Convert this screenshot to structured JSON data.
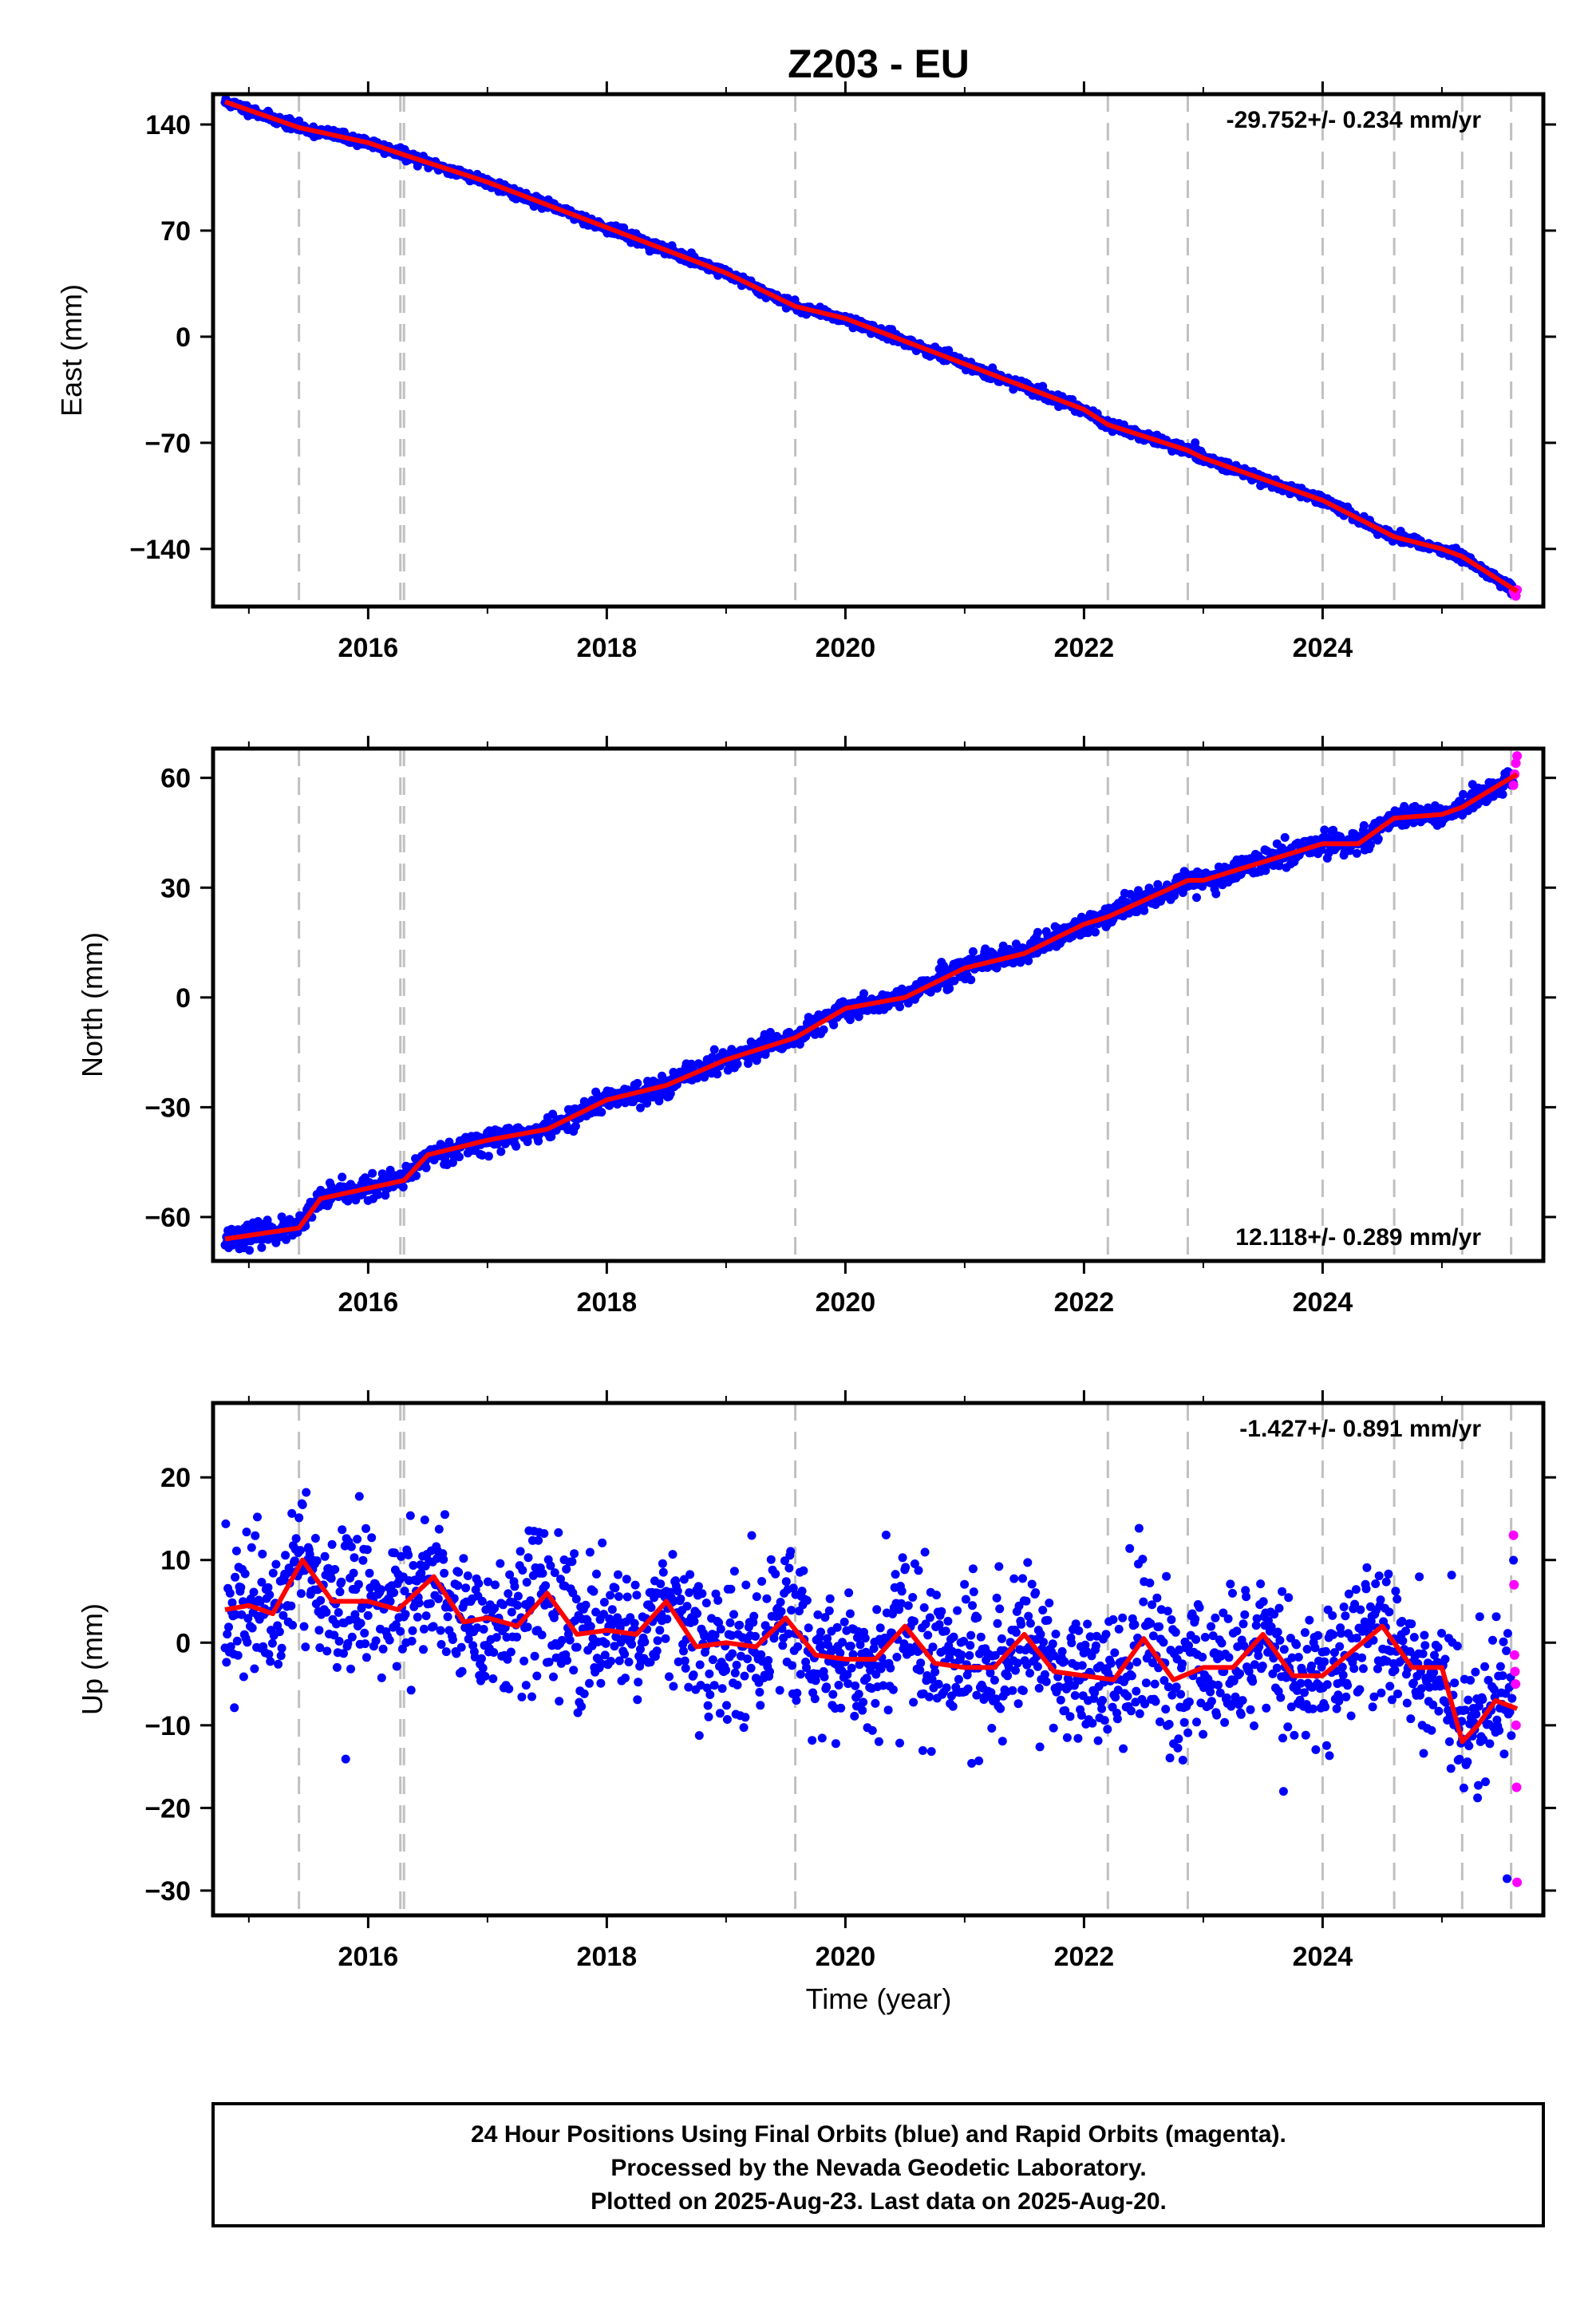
{
  "colors": {
    "final_points": "#0000ff",
    "rapid_points": "#ff00ff",
    "model_line": "#ff0000",
    "event_lines": "#c0c0c0",
    "frame": "#000000"
  },
  "chart_data": {
    "type": "scatter",
    "title": "Z203 - EU",
    "xlabel": "Time (year)",
    "x_range": [
      2014.7,
      2025.85
    ],
    "x_ticks": [
      "2016",
      "2018",
      "2020",
      "2022",
      "2024"
    ],
    "event_lines_years": [
      2015.42,
      2016.27,
      2016.3,
      2019.58,
      2022.2,
      2022.87,
      2024.0,
      2024.6,
      2025.17,
      2025.58
    ],
    "start_year": 2014.8,
    "end_year": 2025.63,
    "rapid_start_year": 2025.6,
    "panels": [
      {
        "name": "East",
        "ylabel": "East (mm)",
        "ylim": [
          -178,
          160
        ],
        "yticks": [
          "140",
          "70",
          "0",
          "−70",
          "−140"
        ],
        "ytick_values": [
          140,
          70,
          0,
          -70,
          -140
        ],
        "rate_text": "-29.752+/- 0.234 mm/yr",
        "rate_position": "top-right",
        "scatter_sd": 1.6,
        "model": {
          "years": [
            2014.8,
            2015.42,
            2016.0,
            2016.3,
            2017.0,
            2018.0,
            2019.0,
            2019.58,
            2020.0,
            2021.0,
            2022.0,
            2022.2,
            2022.87,
            2023.0,
            2024.0,
            2024.6,
            2025.0,
            2025.17,
            2025.63
          ],
          "values": [
            155,
            138,
            128,
            120,
            102,
            72,
            42,
            20,
            12,
            -18,
            -48,
            -58,
            -75,
            -80,
            -108,
            -132,
            -140,
            -145,
            -168
          ]
        },
        "rapid_values": [
          -168,
          -170,
          -171,
          -167
        ]
      },
      {
        "name": "North",
        "ylabel": "North (mm)",
        "ylim": [
          -72,
          68
        ],
        "yticks": [
          "60",
          "30",
          "0",
          "−30",
          "−60"
        ],
        "ytick_values": [
          60,
          30,
          0,
          -30,
          -60
        ],
        "rate_text": "12.118+/- 0.289 mm/yr",
        "rate_position": "bottom-right",
        "scatter_sd": 1.5,
        "model": {
          "years": [
            2014.8,
            2015.42,
            2015.6,
            2016.3,
            2016.5,
            2017.0,
            2017.5,
            2018.0,
            2018.5,
            2019.0,
            2019.58,
            2020.0,
            2020.5,
            2021.0,
            2021.5,
            2022.0,
            2022.2,
            2022.87,
            2023.0,
            2024.0,
            2024.3,
            2024.6,
            2025.0,
            2025.17,
            2025.63
          ],
          "values": [
            -66,
            -63,
            -55,
            -50,
            -43,
            -39,
            -36,
            -28,
            -24,
            -17,
            -11,
            -3,
            0,
            8,
            12,
            20,
            22,
            32,
            32,
            42,
            42,
            49,
            50,
            52,
            61
          ]
        },
        "rapid_values": [
          58,
          61,
          64,
          66
        ]
      },
      {
        "name": "Up",
        "ylabel": "Up (mm)",
        "ylim": [
          -33,
          29
        ],
        "yticks": [
          "20",
          "10",
          "0",
          "−10",
          "−20",
          "−30"
        ],
        "ytick_values": [
          20,
          10,
          0,
          -10,
          -20,
          -30
        ],
        "rate_text": "-1.427+/- 0.891 mm/yr",
        "rate_position": "top-right",
        "scatter_sd": 4.2,
        "model": {
          "years": [
            2014.8,
            2015.0,
            2015.2,
            2015.45,
            2015.7,
            2016.0,
            2016.25,
            2016.55,
            2016.8,
            2017.0,
            2017.25,
            2017.5,
            2017.75,
            2018.0,
            2018.25,
            2018.5,
            2018.75,
            2019.0,
            2019.25,
            2019.5,
            2019.75,
            2020.0,
            2020.25,
            2020.5,
            2020.75,
            2021.0,
            2021.25,
            2021.5,
            2021.75,
            2022.0,
            2022.25,
            2022.5,
            2022.75,
            2023.0,
            2023.25,
            2023.5,
            2023.75,
            2024.0,
            2024.25,
            2024.5,
            2024.75,
            2025.0,
            2025.17,
            2025.3,
            2025.45,
            2025.63
          ],
          "values": [
            4,
            4.5,
            3.5,
            10,
            5,
            5,
            4,
            8,
            2.5,
            3,
            2,
            6,
            1,
            1.5,
            1,
            5,
            -0.5,
            0,
            -0.5,
            3,
            -1.5,
            -2,
            -2,
            2,
            -2.5,
            -3,
            -3,
            1,
            -3.5,
            -4,
            -4.5,
            0.5,
            -4.5,
            -3,
            -3,
            1,
            -4,
            -4,
            -1,
            2,
            -3,
            -3,
            -12,
            -10,
            -7,
            -8
          ]
        },
        "rapid_values": [
          13,
          7,
          -1.5,
          -3.5,
          -5,
          -10,
          -17.5,
          -29
        ]
      }
    ]
  },
  "footer": {
    "line1": "24 Hour Positions Using Final Orbits (blue) and Rapid Orbits (magenta).",
    "line2": "Processed by the Nevada Geodetic Laboratory.",
    "line3": "Plotted on 2025-Aug-23. Last data on 2025-Aug-20."
  }
}
